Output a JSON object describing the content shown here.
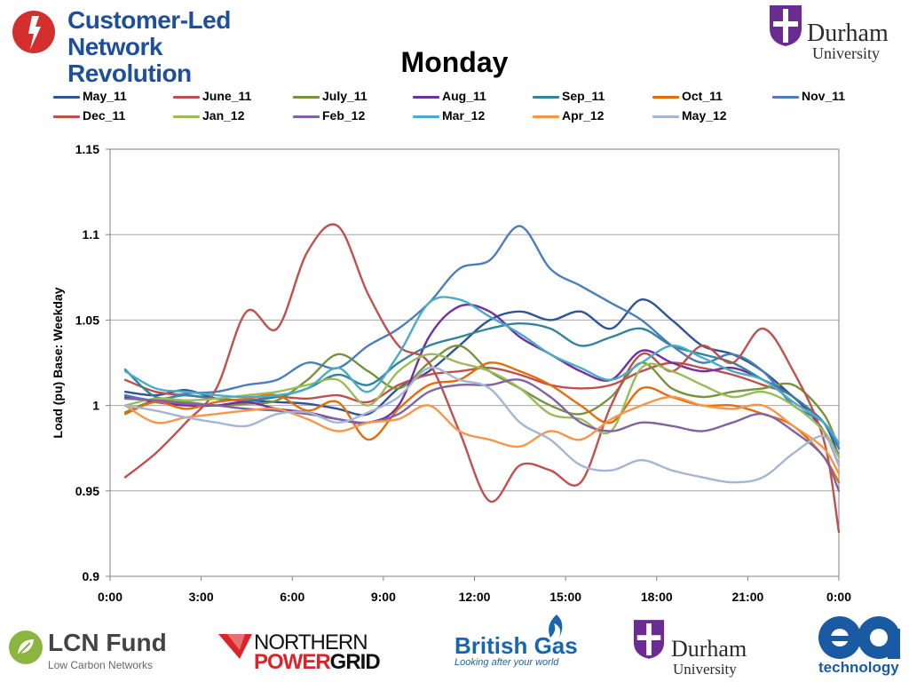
{
  "header": {
    "clnr_line1": "Customer-Led Network",
    "clnr_line2": "Revolution",
    "durham_name": "Durham",
    "durham_sub": "University"
  },
  "footer": {
    "lcn_name": "LCN Fund",
    "lcn_sub": "Low Carbon Networks",
    "npg_top": "NORTHERN",
    "npg_bottom_a": "POWER",
    "npg_bottom_b": "GRID",
    "bg_name": "British Gas",
    "bg_sub": "Looking after your world",
    "durham_name": "Durham",
    "durham_sub": "University",
    "ea_sub": "technology"
  },
  "colors": {
    "brand_blue": "#1f4e9a",
    "clnr_red": "#d32f2f",
    "durham_purple": "#6b2c91",
    "npg_red": "#d9252a",
    "bg_blue": "#1866b0",
    "ea_blue": "#1a5aa3",
    "grid": "#a6a6a6"
  },
  "chart_data": {
    "type": "line",
    "title": "Monday",
    "xlabel": "",
    "ylabel": "Load (pu) Base: Weekday",
    "xlim": [
      0,
      24
    ],
    "ylim": [
      0.9,
      1.15
    ],
    "x_ticks": [
      "0:00",
      "3:00",
      "6:00",
      "9:00",
      "12:00",
      "15:00",
      "18:00",
      "21:00",
      "0:00"
    ],
    "y_ticks": [
      "0.9",
      "0.95",
      "1",
      "1.05",
      "1.1",
      "1.15"
    ],
    "grid": "horizontal",
    "legend_position": "top",
    "x": [
      0.5,
      1.5,
      2.5,
      3.5,
      4.5,
      5.5,
      6.5,
      7.5,
      8.5,
      9.5,
      10.5,
      11.5,
      12.5,
      13.5,
      14.5,
      15.5,
      16.5,
      17.5,
      18.5,
      19.5,
      20.5,
      21.5,
      22.5,
      23.5,
      24
    ],
    "series": [
      {
        "name": "May_11",
        "color": "#2f5597",
        "values": [
          1.008,
          1.006,
          1.009,
          1.004,
          1.003,
          1.002,
          1.001,
          0.998,
          0.995,
          1.01,
          1.02,
          1.035,
          1.05,
          1.055,
          1.05,
          1.055,
          1.045,
          1.062,
          1.05,
          1.035,
          1.03,
          1.02,
          1.005,
          0.99,
          0.97
        ]
      },
      {
        "name": "June_11",
        "color": "#c0504d",
        "values": [
          1.015,
          1.008,
          1.006,
          1.004,
          1.003,
          1.005,
          1.004,
          1.006,
          1.002,
          1.012,
          1.018,
          1.02,
          1.022,
          1.018,
          1.012,
          1.01,
          1.012,
          1.02,
          1.025,
          1.022,
          1.018,
          1.012,
          1.005,
          0.985,
          0.965
        ]
      },
      {
        "name": "July_11",
        "color": "#77933c",
        "values": [
          0.996,
          1.003,
          1.002,
          1.0,
          1.001,
          1.003,
          1.015,
          1.03,
          1.02,
          1.01,
          1.025,
          1.035,
          1.02,
          1.01,
          1.0,
          0.995,
          1.005,
          1.025,
          1.01,
          1.005,
          1.008,
          1.01,
          1.012,
          0.995,
          0.975
        ]
      },
      {
        "name": "Aug_11",
        "color": "#7030a0",
        "values": [
          1.005,
          1.002,
          1.0,
          1.0,
          1.002,
          0.998,
          0.996,
          0.992,
          0.99,
          1.0,
          1.04,
          1.058,
          1.055,
          1.04,
          1.03,
          1.02,
          1.015,
          1.032,
          1.025,
          1.02,
          1.022,
          1.015,
          1.005,
          0.985,
          0.965
        ]
      },
      {
        "name": "Sep_11",
        "color": "#31849b",
        "values": [
          1.021,
          1.005,
          1.006,
          1.004,
          1.003,
          1.005,
          1.01,
          1.018,
          1.012,
          1.025,
          1.035,
          1.04,
          1.045,
          1.048,
          1.045,
          1.035,
          1.04,
          1.045,
          1.035,
          1.03,
          1.025,
          1.015,
          1.005,
          0.99,
          0.975
        ]
      },
      {
        "name": "Oct_11",
        "color": "#e46c0a",
        "values": [
          0.995,
          1.002,
          0.998,
          1.002,
          1.004,
          1.006,
          0.997,
          1.002,
          0.98,
          0.998,
          1.012,
          1.015,
          1.025,
          1.02,
          1.012,
          1.0,
          0.99,
          1.01,
          1.005,
          1.0,
          1.0,
          0.995,
          0.988,
          0.97,
          0.955
        ]
      },
      {
        "name": "Nov_11",
        "color": "#4a7ebb",
        "values": [
          1.006,
          1.003,
          1.007,
          1.008,
          1.012,
          1.015,
          1.025,
          1.022,
          1.035,
          1.045,
          1.06,
          1.08,
          1.085,
          1.105,
          1.08,
          1.07,
          1.06,
          1.05,
          1.035,
          1.025,
          1.03,
          1.02,
          1.0,
          0.99,
          0.975
        ]
      },
      {
        "name": "Dec_11",
        "color": "#c0504d",
        "values": [
          0.958,
          0.972,
          0.99,
          1.01,
          1.055,
          1.045,
          1.09,
          1.105,
          1.065,
          1.035,
          1.025,
          0.985,
          0.944,
          0.965,
          0.962,
          0.955,
          1.0,
          1.03,
          1.02,
          1.035,
          1.025,
          1.045,
          1.02,
          0.98,
          0.926
        ]
      },
      {
        "name": "Jan_12",
        "color": "#9bbb59",
        "values": [
          1.0,
          1.004,
          1.003,
          1.004,
          1.006,
          1.008,
          1.012,
          1.015,
          1.0,
          1.02,
          1.03,
          1.025,
          1.02,
          1.01,
          0.995,
          0.992,
          0.985,
          1.022,
          1.02,
          1.012,
          1.005,
          1.008,
          1.0,
          0.985,
          0.97
        ]
      },
      {
        "name": "Feb_12",
        "color": "#8064a2",
        "values": [
          1.004,
          1.003,
          1.001,
          1.0,
          0.998,
          0.997,
          0.995,
          0.992,
          0.99,
          0.995,
          1.008,
          1.012,
          1.012,
          1.015,
          1.005,
          0.99,
          0.985,
          0.99,
          0.988,
          0.985,
          0.99,
          0.995,
          0.985,
          0.97,
          0.95
        ]
      },
      {
        "name": "Mar_12",
        "color": "#4bacc6",
        "values": [
          1.02,
          1.01,
          1.008,
          1.006,
          1.005,
          1.006,
          1.01,
          1.022,
          1.008,
          1.03,
          1.06,
          1.062,
          1.052,
          1.042,
          1.03,
          1.022,
          1.015,
          1.025,
          1.035,
          1.028,
          1.02,
          1.015,
          1.002,
          0.99,
          0.978
        ]
      },
      {
        "name": "Apr_12",
        "color": "#f79646",
        "values": [
          1.0,
          0.99,
          0.993,
          0.995,
          0.997,
          0.998,
          0.992,
          0.985,
          0.99,
          0.992,
          1.0,
          0.985,
          0.98,
          0.976,
          0.985,
          0.98,
          0.992,
          1.0,
          1.005,
          1.0,
          0.998,
          1.0,
          0.988,
          0.975,
          0.96
        ]
      },
      {
        "name": "May_12",
        "color": "#a5b6d5",
        "values": [
          1.0,
          0.997,
          0.993,
          0.99,
          0.988,
          0.995,
          0.996,
          0.99,
          0.996,
          1.005,
          1.022,
          1.015,
          1.01,
          0.99,
          0.98,
          0.965,
          0.962,
          0.968,
          0.962,
          0.958,
          0.955,
          0.958,
          0.972,
          0.982,
          0.965
        ]
      }
    ]
  }
}
